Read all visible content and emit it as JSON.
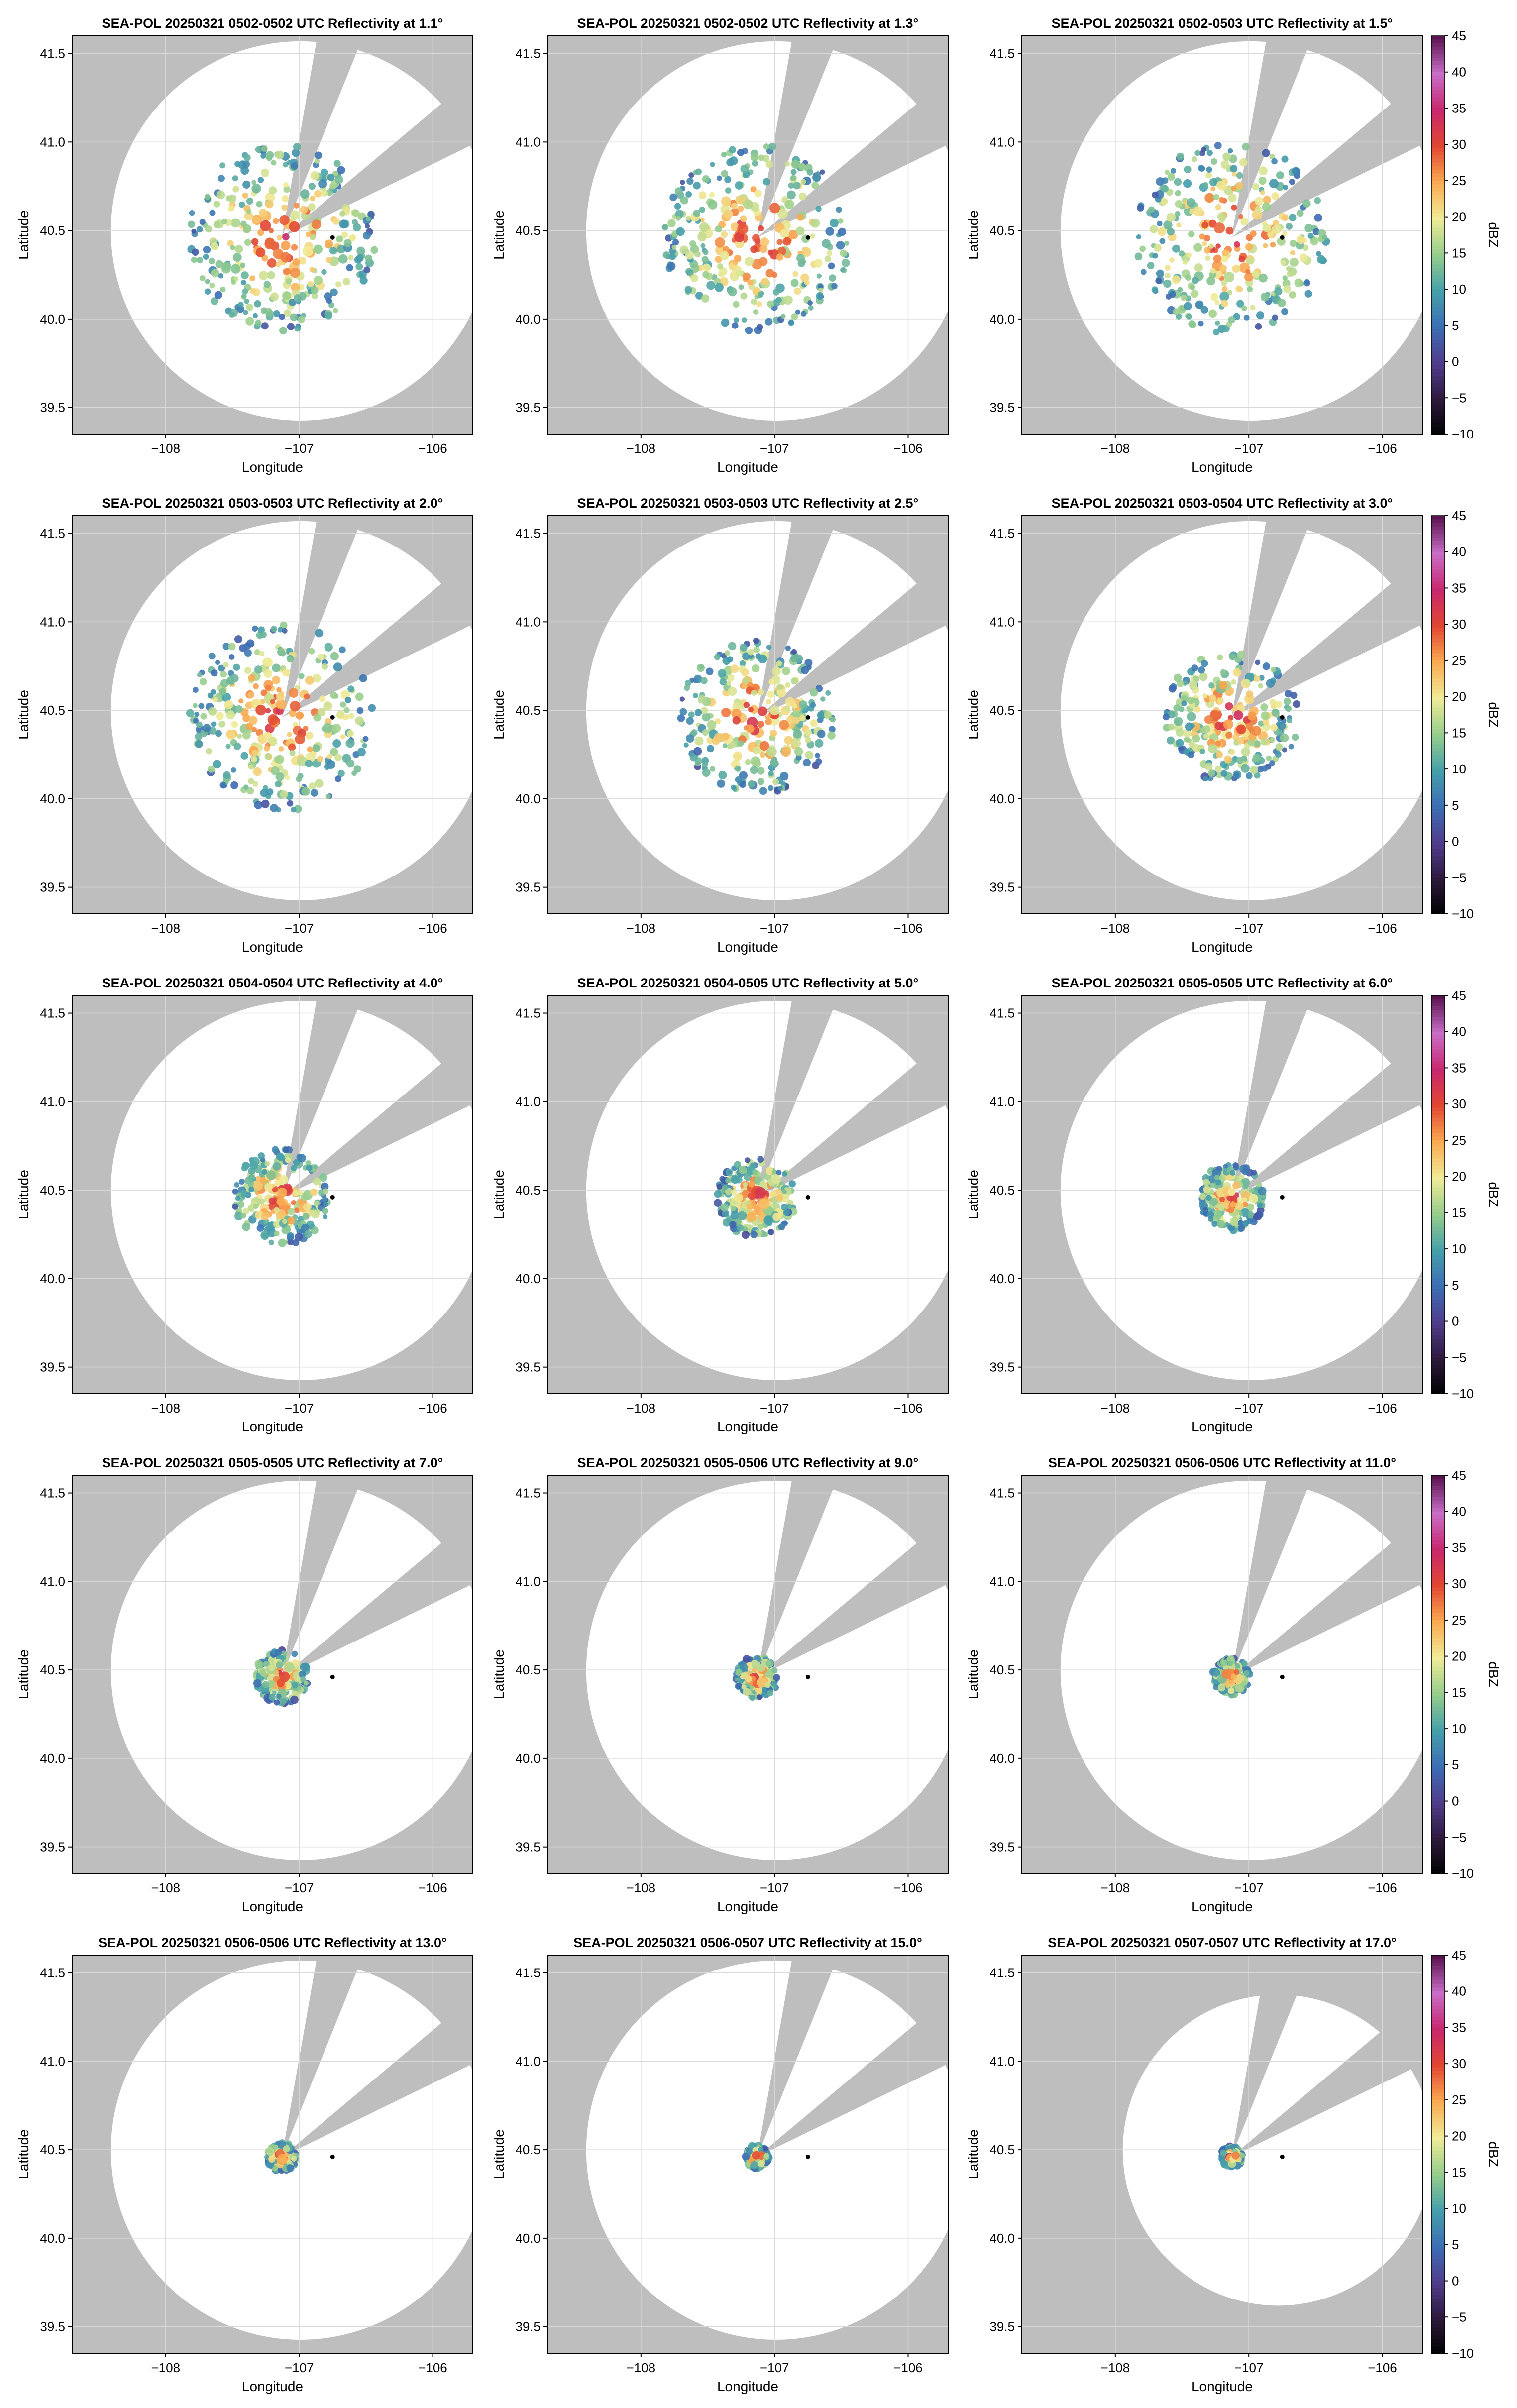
{
  "figure": {
    "colors": {
      "no_data_gray": "#bebebe",
      "sweep_white": "#ffffff",
      "frame": "#000000",
      "grid": "#d9d9d9",
      "radar_site": "#000000"
    },
    "colorbar": {
      "label": "dBZ",
      "ticks": [
        45,
        40,
        35,
        30,
        25,
        20,
        15,
        10,
        5,
        0,
        -5,
        -10
      ],
      "min": -10,
      "max": 45
    }
  },
  "chart_data": [
    {
      "type": "heatmap",
      "title": "SEA-POL 20250321 0502-0502 UTC Reflectivity at 1.1°",
      "xlabel": "Longitude",
      "ylabel": "Latitude",
      "xticks": [
        "−108",
        "−107",
        "−106"
      ],
      "yticks": [
        "41.5",
        "41.0",
        "40.5",
        "40.0",
        "39.5"
      ],
      "xlim": [
        -108.7,
        -105.7
      ],
      "ylim": [
        39.35,
        41.6
      ],
      "radar_lon": -107.13,
      "radar_lat": 40.46,
      "station_lon": -106.75,
      "station_lat": 40.46,
      "elevation_deg": 1.1,
      "echo_radius_deg": 0.7,
      "colorbar": false
    },
    {
      "type": "heatmap",
      "title": "SEA-POL 20250321 0502-0502 UTC Reflectivity at 1.3°",
      "xlabel": "Longitude",
      "ylabel": "Latitude",
      "xticks": [
        "−108",
        "−107",
        "−106"
      ],
      "yticks": [
        "41.5",
        "41.0",
        "40.5",
        "40.0",
        "39.5"
      ],
      "xlim": [
        -108.7,
        -105.7
      ],
      "ylim": [
        39.35,
        41.6
      ],
      "radar_lon": -107.13,
      "radar_lat": 40.46,
      "station_lon": -106.75,
      "station_lat": 40.46,
      "elevation_deg": 1.3,
      "echo_radius_deg": 0.7,
      "colorbar": false
    },
    {
      "type": "heatmap",
      "title": "SEA-POL 20250321 0502-0503 UTC Reflectivity at 1.5°",
      "xlabel": "Longitude",
      "ylabel": "Latitude",
      "xticks": [
        "−108",
        "−107",
        "−106"
      ],
      "yticks": [
        "41.5",
        "41.0",
        "40.5",
        "40.0",
        "39.5"
      ],
      "xlim": [
        -108.7,
        -105.7
      ],
      "ylim": [
        39.35,
        41.6
      ],
      "radar_lon": -107.13,
      "radar_lat": 40.46,
      "station_lon": -106.75,
      "station_lat": 40.46,
      "elevation_deg": 1.5,
      "echo_radius_deg": 0.72,
      "colorbar": true
    },
    {
      "type": "heatmap",
      "title": "SEA-POL 20250321 0503-0503 UTC Reflectivity at 2.0°",
      "xlabel": "Longitude",
      "ylabel": "Latitude",
      "xticks": [
        "−108",
        "−107",
        "−106"
      ],
      "yticks": [
        "41.5",
        "41.0",
        "40.5",
        "40.0",
        "39.5"
      ],
      "xlim": [
        -108.7,
        -105.7
      ],
      "ylim": [
        39.35,
        41.6
      ],
      "radar_lon": -107.13,
      "radar_lat": 40.46,
      "station_lon": -106.75,
      "station_lat": 40.46,
      "elevation_deg": 2.0,
      "echo_radius_deg": 0.7,
      "colorbar": false
    },
    {
      "type": "heatmap",
      "title": "SEA-POL 20250321 0503-0503 UTC Reflectivity at 2.5°",
      "xlabel": "Longitude",
      "ylabel": "Latitude",
      "xticks": [
        "−108",
        "−107",
        "−106"
      ],
      "yticks": [
        "41.5",
        "41.0",
        "40.5",
        "40.0",
        "39.5"
      ],
      "xlim": [
        -108.7,
        -105.7
      ],
      "ylim": [
        39.35,
        41.6
      ],
      "radar_lon": -107.13,
      "radar_lat": 40.46,
      "station_lon": -106.75,
      "station_lat": 40.46,
      "elevation_deg": 2.5,
      "echo_radius_deg": 0.58,
      "colorbar": false
    },
    {
      "type": "heatmap",
      "title": "SEA-POL 20250321 0503-0504 UTC Reflectivity at 3.0°",
      "xlabel": "Longitude",
      "ylabel": "Latitude",
      "xticks": [
        "−108",
        "−107",
        "−106"
      ],
      "yticks": [
        "41.5",
        "41.0",
        "40.5",
        "40.0",
        "39.5"
      ],
      "xlim": [
        -108.7,
        -105.7
      ],
      "ylim": [
        39.35,
        41.6
      ],
      "radar_lon": -107.13,
      "radar_lat": 40.46,
      "station_lon": -106.75,
      "station_lat": 40.46,
      "elevation_deg": 3.0,
      "echo_radius_deg": 0.5,
      "colorbar": true
    },
    {
      "type": "heatmap",
      "title": "SEA-POL 20250321 0504-0504 UTC Reflectivity at 4.0°",
      "xlabel": "Longitude",
      "ylabel": "Latitude",
      "xticks": [
        "−108",
        "−107",
        "−106"
      ],
      "yticks": [
        "41.5",
        "41.0",
        "40.5",
        "40.0",
        "39.5"
      ],
      "xlim": [
        -108.7,
        -105.7
      ],
      "ylim": [
        39.35,
        41.6
      ],
      "radar_lon": -107.13,
      "radar_lat": 40.46,
      "station_lon": -106.75,
      "station_lat": 40.46,
      "elevation_deg": 4.0,
      "echo_radius_deg": 0.36,
      "colorbar": false
    },
    {
      "type": "heatmap",
      "title": "SEA-POL 20250321 0504-0505 UTC Reflectivity at 5.0°",
      "xlabel": "Longitude",
      "ylabel": "Latitude",
      "xticks": [
        "−108",
        "−107",
        "−106"
      ],
      "yticks": [
        "41.5",
        "41.0",
        "40.5",
        "40.0",
        "39.5"
      ],
      "xlim": [
        -108.7,
        -105.7
      ],
      "ylim": [
        39.35,
        41.6
      ],
      "radar_lon": -107.13,
      "radar_lat": 40.46,
      "station_lon": -106.75,
      "station_lat": 40.46,
      "elevation_deg": 5.0,
      "echo_radius_deg": 0.3,
      "colorbar": false
    },
    {
      "type": "heatmap",
      "title": "SEA-POL 20250321 0505-0505 UTC Reflectivity at 6.0°",
      "xlabel": "Longitude",
      "ylabel": "Latitude",
      "xticks": [
        "−108",
        "−107",
        "−106"
      ],
      "yticks": [
        "41.5",
        "41.0",
        "40.5",
        "40.0",
        "39.5"
      ],
      "xlim": [
        -108.7,
        -105.7
      ],
      "ylim": [
        39.35,
        41.6
      ],
      "radar_lon": -107.13,
      "radar_lat": 40.46,
      "station_lon": -106.75,
      "station_lat": 40.46,
      "elevation_deg": 6.0,
      "echo_radius_deg": 0.25,
      "colorbar": true
    },
    {
      "type": "heatmap",
      "title": "SEA-POL 20250321 0505-0505 UTC Reflectivity at 7.0°",
      "xlabel": "Longitude",
      "ylabel": "Latitude",
      "xticks": [
        "−108",
        "−107",
        "−106"
      ],
      "yticks": [
        "41.5",
        "41.0",
        "40.5",
        "40.0",
        "39.5"
      ],
      "xlim": [
        -108.7,
        -105.7
      ],
      "ylim": [
        39.35,
        41.6
      ],
      "radar_lon": -107.13,
      "radar_lat": 40.46,
      "station_lon": -106.75,
      "station_lat": 40.46,
      "elevation_deg": 7.0,
      "echo_radius_deg": 0.2,
      "colorbar": false
    },
    {
      "type": "heatmap",
      "title": "SEA-POL 20250321 0505-0506 UTC Reflectivity at 9.0°",
      "xlabel": "Longitude",
      "ylabel": "Latitude",
      "xticks": [
        "−108",
        "−107",
        "−106"
      ],
      "yticks": [
        "41.5",
        "41.0",
        "40.5",
        "40.0",
        "39.5"
      ],
      "xlim": [
        -108.7,
        -105.7
      ],
      "ylim": [
        39.35,
        41.6
      ],
      "radar_lon": -107.13,
      "radar_lat": 40.46,
      "station_lon": -106.75,
      "station_lat": 40.46,
      "elevation_deg": 9.0,
      "echo_radius_deg": 0.16,
      "colorbar": false
    },
    {
      "type": "heatmap",
      "title": "SEA-POL 20250321 0506-0506 UTC Reflectivity at 11.0°",
      "xlabel": "Longitude",
      "ylabel": "Latitude",
      "xticks": [
        "−108",
        "−107",
        "−106"
      ],
      "yticks": [
        "41.5",
        "41.0",
        "40.5",
        "40.0",
        "39.5"
      ],
      "xlim": [
        -108.7,
        -105.7
      ],
      "ylim": [
        39.35,
        41.6
      ],
      "radar_lon": -107.13,
      "radar_lat": 40.46,
      "station_lon": -106.75,
      "station_lat": 40.46,
      "elevation_deg": 11.0,
      "echo_radius_deg": 0.14,
      "colorbar": true
    },
    {
      "type": "heatmap",
      "title": "SEA-POL 20250321 0506-0506 UTC Reflectivity at 13.0°",
      "xlabel": "Longitude",
      "ylabel": "Latitude",
      "xticks": [
        "−108",
        "−107",
        "−106"
      ],
      "yticks": [
        "41.5",
        "41.0",
        "40.5",
        "40.0",
        "39.5"
      ],
      "xlim": [
        -108.7,
        -105.7
      ],
      "ylim": [
        39.35,
        41.6
      ],
      "radar_lon": -107.13,
      "radar_lat": 40.46,
      "station_lon": -106.75,
      "station_lat": 40.46,
      "elevation_deg": 13.0,
      "echo_radius_deg": 0.11,
      "colorbar": false
    },
    {
      "type": "heatmap",
      "title": "SEA-POL 20250321 0506-0507 UTC Reflectivity at 15.0°",
      "xlabel": "Longitude",
      "ylabel": "Latitude",
      "xticks": [
        "−108",
        "−107",
        "−106"
      ],
      "yticks": [
        "41.5",
        "41.0",
        "40.5",
        "40.0",
        "39.5"
      ],
      "xlim": [
        -108.7,
        -105.7
      ],
      "ylim": [
        39.35,
        41.6
      ],
      "radar_lon": -107.13,
      "radar_lat": 40.46,
      "station_lon": -106.75,
      "station_lat": 40.46,
      "elevation_deg": 15.0,
      "echo_radius_deg": 0.09,
      "colorbar": false
    },
    {
      "type": "heatmap",
      "title": "SEA-POL 20250321 0507-0507 UTC Reflectivity at 17.0°",
      "xlabel": "Longitude",
      "ylabel": "Latitude",
      "xticks": [
        "−108",
        "−107",
        "−106"
      ],
      "yticks": [
        "41.5",
        "41.0",
        "40.5",
        "40.0",
        "39.5"
      ],
      "xlim": [
        -108.7,
        -105.7
      ],
      "ylim": [
        39.35,
        41.6
      ],
      "radar_lon": -107.13,
      "radar_lat": 40.46,
      "station_lon": -106.75,
      "station_lat": 40.46,
      "elevation_deg": 17.0,
      "echo_radius_deg": 0.08,
      "colorbar": true
    }
  ]
}
